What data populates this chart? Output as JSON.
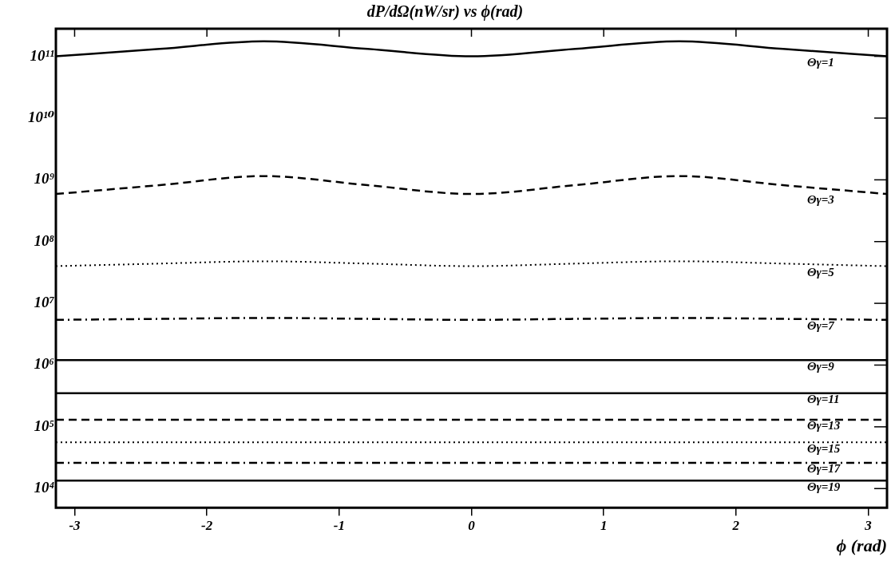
{
  "chart_data": {
    "type": "line",
    "title": "dP/dΩ(nW/sr) vs ϕ(rad)",
    "xlabel": "ϕ (rad)",
    "log": "y",
    "grid": false,
    "legend": false,
    "marker": "none",
    "x": [
      -3.1416,
      -2.3562,
      -1.5708,
      -0.7854,
      0,
      0.7854,
      1.5708,
      2.3562,
      3.1416
    ],
    "xlim": [
      -3.1416,
      3.1416
    ],
    "xticks": [
      -3,
      -2,
      -1,
      0,
      1,
      2,
      3
    ],
    "ylim": [
      4900.0,
      280000000000.0
    ],
    "yticks": [
      {
        "value": 10000,
        "label": "10⁴"
      },
      {
        "value": 100000,
        "label": "10⁵"
      },
      {
        "value": 1000000,
        "label": "10⁶"
      },
      {
        "value": 10000000,
        "label": "10⁷"
      },
      {
        "value": 100000000,
        "label": "10⁸"
      },
      {
        "value": 1000000000,
        "label": "10⁹"
      },
      {
        "value": 10000000000,
        "label": "10¹⁰"
      },
      {
        "value": 100000000000,
        "label": "10¹¹"
      }
    ],
    "series": [
      {
        "name": "Θγ=1",
        "color": "#000000",
        "line_style": "solid",
        "values": [
          100000000000.0,
          132000000000.0,
          175000000000.0,
          132000000000.0,
          100000000000.0,
          132000000000.0,
          175000000000.0,
          132000000000.0,
          100000000000.0
        ]
      },
      {
        "name": "Θγ=3",
        "color": "#000000",
        "line_style": "dashed",
        "values": [
          590000000.0,
          820000000.0,
          1150000000.0,
          820000000.0,
          590000000.0,
          820000000.0,
          1150000000.0,
          820000000.0,
          590000000.0
        ]
      },
      {
        "name": "Θγ=5",
        "color": "#000000",
        "line_style": "dotted",
        "values": [
          40000000.0,
          44000000.0,
          48000000.0,
          44000000.0,
          40000000.0,
          44000000.0,
          48000000.0,
          44000000.0,
          40000000.0
        ]
      },
      {
        "name": "Θγ=7",
        "color": "#000000",
        "line_style": "dashdot",
        "values": [
          5400000.0,
          5600000.0,
          5800000.0,
          5600000.0,
          5400000.0,
          5600000.0,
          5800000.0,
          5600000.0,
          5400000.0
        ]
      },
      {
        "name": "Θγ=9",
        "color": "#000000",
        "line_style": "solid",
        "values": [
          1200000.0,
          1200000.0,
          1200000.0,
          1200000.0,
          1200000.0,
          1200000.0,
          1200000.0,
          1200000.0,
          1200000.0
        ]
      },
      {
        "name": "Θγ=11",
        "color": "#000000",
        "line_style": "solid",
        "values": [
          350000.0,
          350000.0,
          350000.0,
          350000.0,
          350000.0,
          350000.0,
          350000.0,
          350000.0,
          350000.0
        ]
      },
      {
        "name": "Θγ=13",
        "color": "#000000",
        "line_style": "dashed",
        "values": [
          130000.0,
          130000.0,
          130000.0,
          130000.0,
          130000.0,
          130000.0,
          130000.0,
          130000.0,
          130000.0
        ]
      },
      {
        "name": "Θγ=15",
        "color": "#000000",
        "line_style": "dotted",
        "values": [
          56000.0,
          56000.0,
          56000.0,
          56000.0,
          56000.0,
          56000.0,
          56000.0,
          56000.0,
          56000.0
        ]
      },
      {
        "name": "Θγ=17",
        "color": "#000000",
        "line_style": "dashdot",
        "values": [
          26000.0,
          26000.0,
          26000.0,
          26000.0,
          26000.0,
          26000.0,
          26000.0,
          26000.0,
          26000.0
        ]
      },
      {
        "name": "Θγ=19",
        "color": "#000000",
        "line_style": "solid",
        "values": [
          13500.0,
          13500.0,
          13500.0,
          13500.0,
          13500.0,
          13500.0,
          13500.0,
          13500.0,
          13500.0
        ]
      }
    ]
  }
}
